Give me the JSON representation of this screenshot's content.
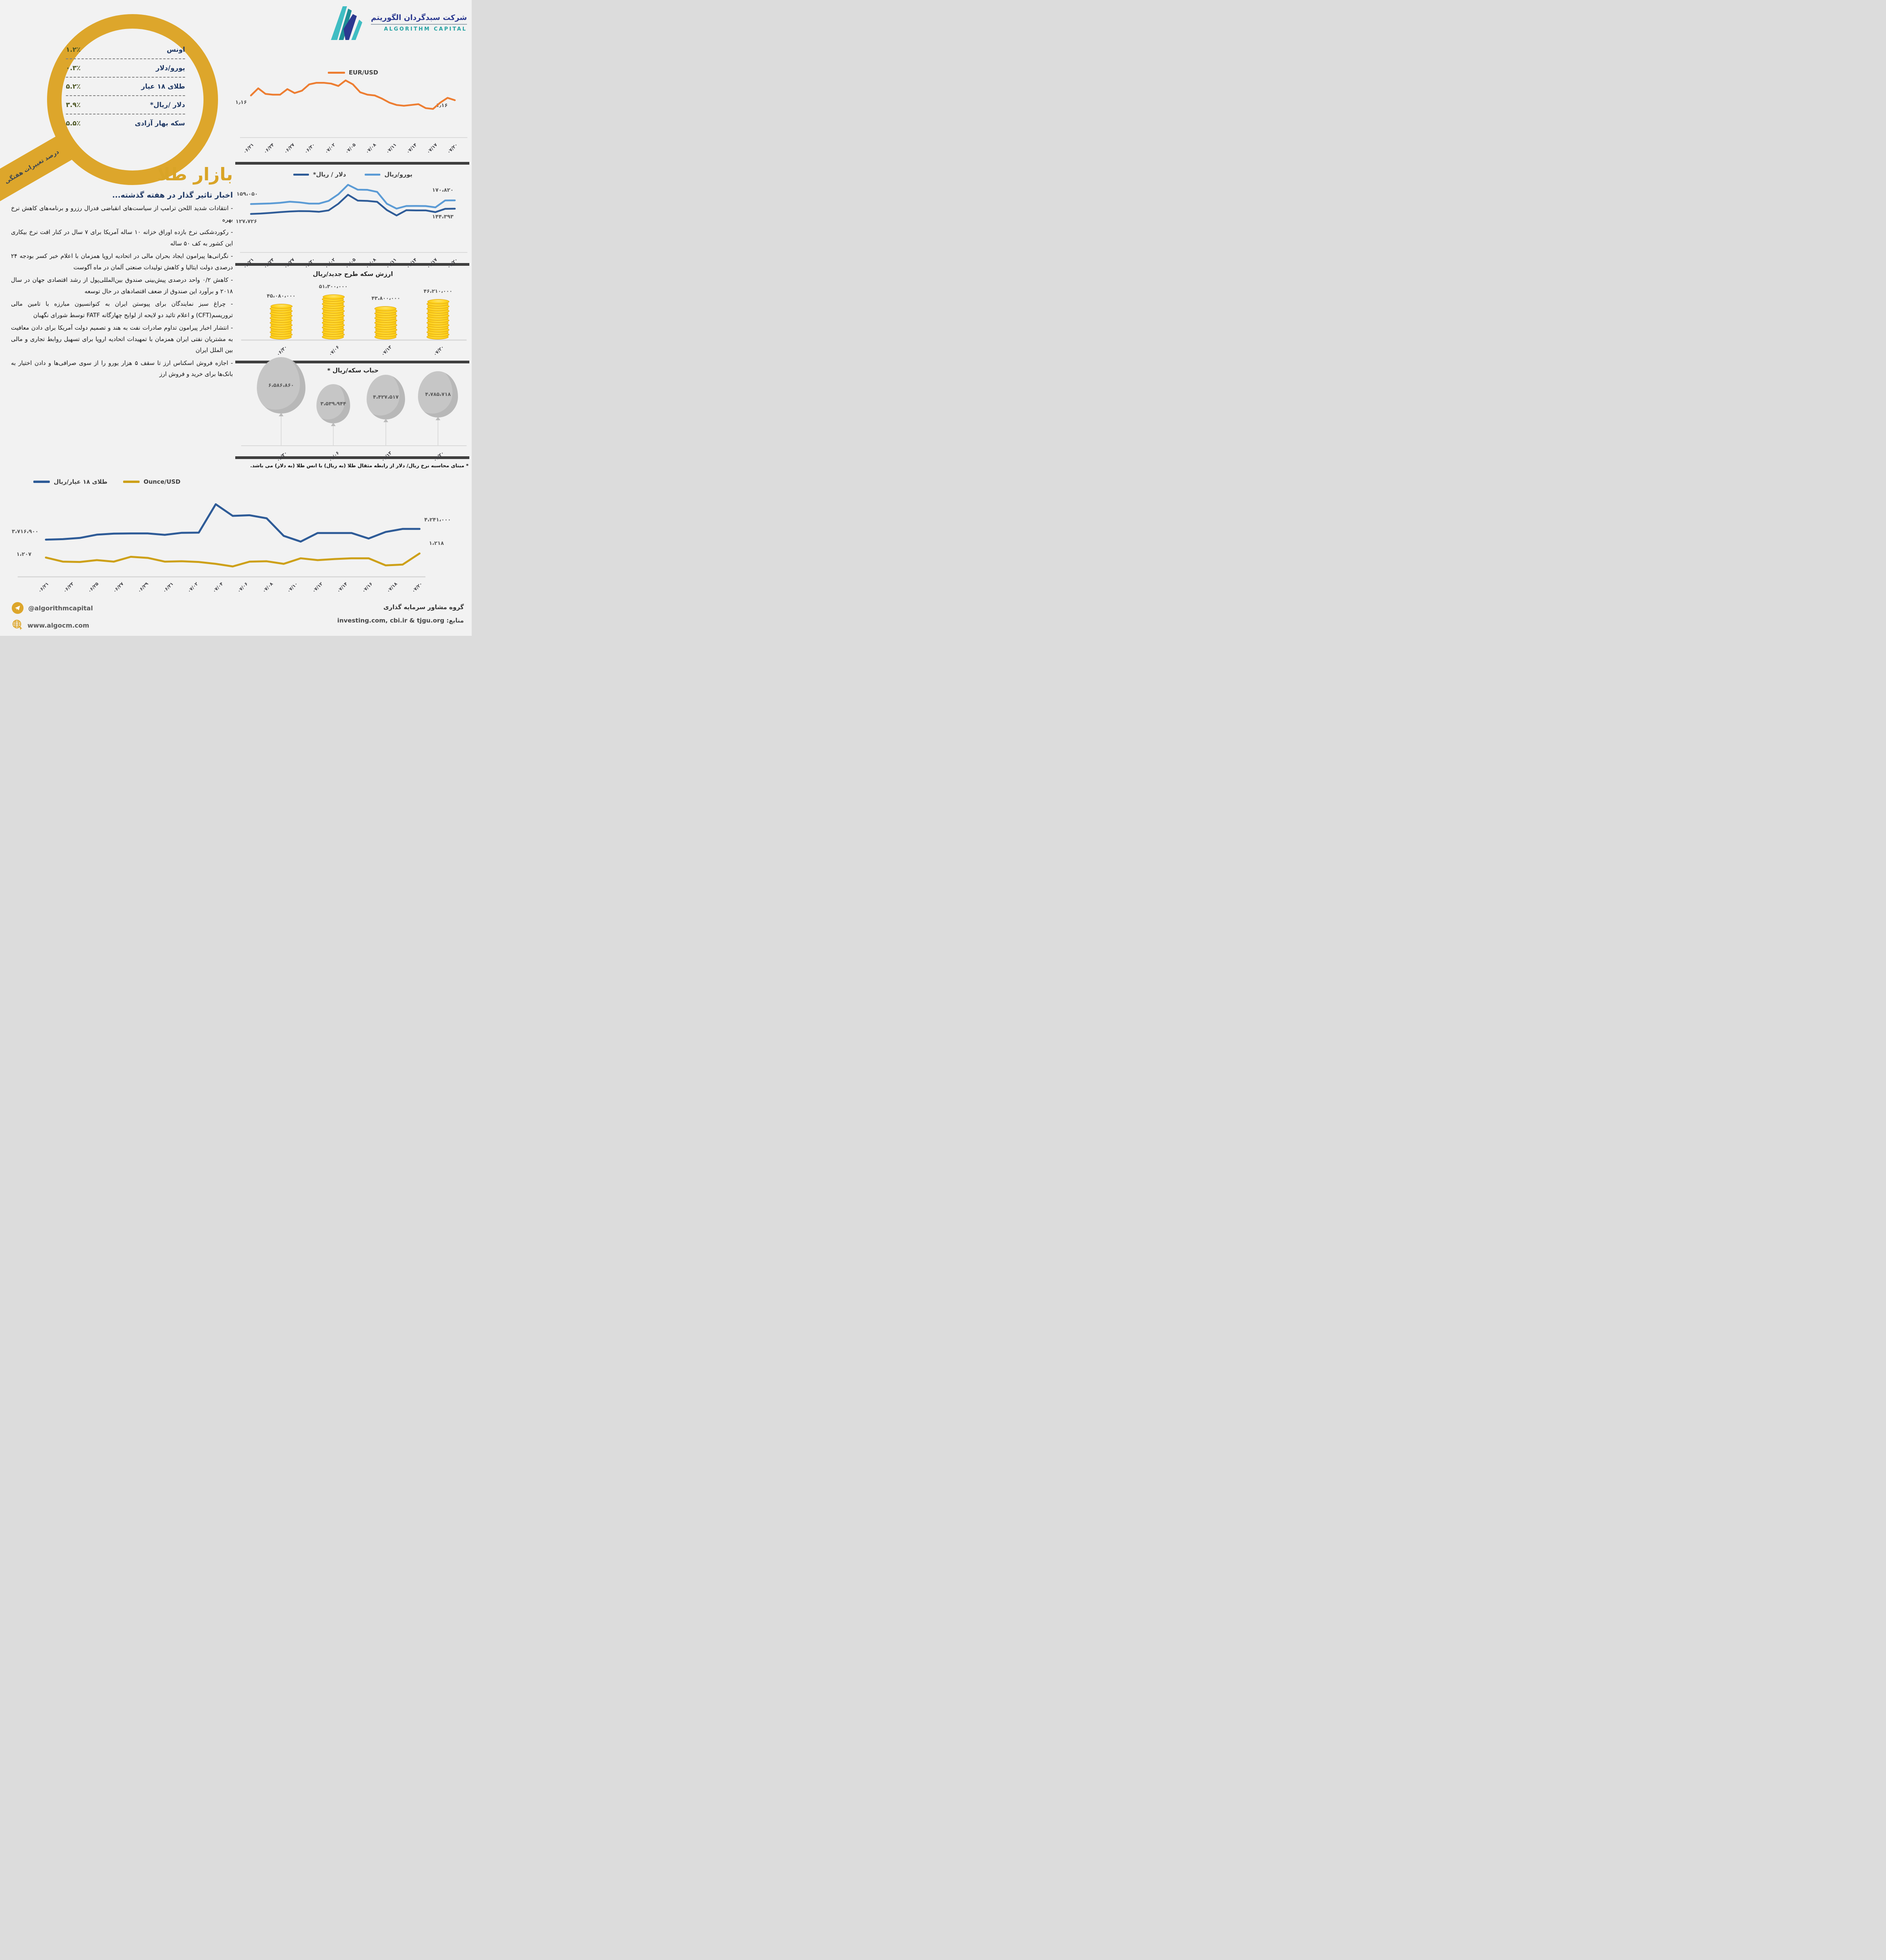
{
  "brand": {
    "name_fa": "شرکت سبدگردان الگوریتم",
    "name_en": "ALGORITHM CAPITAL"
  },
  "magnifier": {
    "handle_label": "درصد تغییرات هفتگی",
    "rows": [
      {
        "label": "اونس",
        "value": "۱.۲٪"
      },
      {
        "label": "یورو/دلار",
        "value": "۰.۳٪"
      },
      {
        "label": "طلای ۱۸ عیار",
        "value": "۵.۲٪"
      },
      {
        "label": "دلار /ریال*",
        "value": "۳.۹٪"
      },
      {
        "label": "سکه بهار آزادی",
        "value": "۵.۵٪"
      }
    ]
  },
  "news": {
    "title": "بازار طلا",
    "subtitle": "اخبار تاثیر گذار در هفته گذشته...",
    "items": [
      "- انتقادات شدید اللحن ترامپ از سیاست‌های انقباضی فدرال رزرو و برنامه‌های کاهش نرخ بهره",
      "- رکوردشکنی نرخ بازده اوراق خزانه ۱۰ ساله آمریکا برای ۷ سال در کنار افت نرخ بیکاری این کشور به کف ۵۰ ساله",
      "- نگرانی‌ها پیرامون ایجاد بحران مالی در اتحادیه اروپا همزمان با اعلام خبر کسر بودجه ۲۴ درصدی دولت ایتالیا و کاهش تولیدات صنعتی آلمان در ماه آگوست",
      "- کاهش ۰/۲ واحد درصدی پیش‌بینی صندوق بین‌المللی‌پول از رشد اقتصادی جهان در سال ۲۰۱۸ و برآورد این صندوق از ضعف اقتصادهای در حال توسعه",
      "- چراغ سبز نمایندگان برای پیوستن ایران به کنوانسیون مبارزه با تامین مالی تروریسم(CFT) و اعلام تائید دو لایحه از لوایح چهارگانه FATF توسط شورای نگهبان",
      "- انتشار اخبار پیرامون تداوم صادرات نفت به هند و تصمیم دولت آمریکا برای دادن معافیت به مشتریان نفتی ایران همزمان با تمهیدات اتحادیه اروپا برای تسهیل روابط تجاری و مالی بین الملل ایران",
      "- اجازه فروش اسکناس ارز تا سقف ۵ هزار یورو را از سوی صرافی‌ها و دادن اختیار به بانک‌ها برای خرید و فروش ارز"
    ]
  },
  "footnote": "* مبنای محاسبه نرخ ریال/ دلار از رابطه مثقال طلا (به ریال) با انس طلا (به دلار) می باشد.",
  "footer": {
    "telegram": "@algorithmcapital",
    "website": "www.algocm.com",
    "group": "گروه مشاور سرمایه گذاری",
    "sources_label": "منابع:",
    "sources": "investing.com, cbi.ir & tjgu.org"
  },
  "colors": {
    "background": "#F2F2F2",
    "accent_gold": "#DDA62B",
    "orange": "#ED7D31",
    "blue_dark": "#2E5B97",
    "blue_light": "#5B9BD5",
    "gold_line": "#CDA018",
    "navy": "#1F3864",
    "olive_green": "#4A5420",
    "gray_label": "#595959",
    "separator_bar": "#3F3F3F",
    "balloon_gray": "#C6C6C6",
    "coin_yellow": "#FFD21C",
    "logo_teal": "#21A0A0",
    "logo_navy": "#2B3990"
  },
  "chart_data": [
    {
      "id": "eur_usd",
      "type": "line",
      "x_labels": [
        "۰۶/۲۱",
        "۰۶/۲۴",
        "۰۶/۲۷",
        "۰۶/۳۰",
        "۰۷/۰۲",
        "۰۷/۰۵",
        "۰۷/۰۸",
        "۰۷/۱۱",
        "۰۷/۱۴",
        "۰۷/۱۷",
        "۰۷/۲۰"
      ],
      "ylim": [
        1.138,
        1.186
      ],
      "legend_position": "top-center",
      "series": [
        {
          "name": "EUR/USD",
          "color": "#ED7D31",
          "start_label": "۱٫۱۶",
          "end_label": "۱٫۱۶",
          "values": [
            1.162,
            1.171,
            1.164,
            1.163,
            1.163,
            1.17,
            1.165,
            1.168,
            1.176,
            1.178,
            1.178,
            1.177,
            1.174,
            1.181,
            1.176,
            1.166,
            1.163,
            1.162,
            1.158,
            1.153,
            1.15,
            1.149,
            1.15,
            1.151,
            1.146,
            1.145,
            1.153,
            1.159,
            1.156
          ]
        }
      ]
    },
    {
      "id": "usd_rial_eur_rial",
      "type": "line",
      "x_labels": [
        "۰۶/۲۱",
        "۰۶/۲۴",
        "۰۶/۲۷",
        "۰۶/۳۰",
        "۰۷/۰۲",
        "۰۷/۰۵",
        "۰۷/۰۸",
        "۰۷/۱۱",
        "۰۷/۱۴",
        "۰۷/۱۷",
        "۰۷/۲۰"
      ],
      "ylim": [
        120000,
        228000
      ],
      "legend_position": "top-center",
      "series": [
        {
          "name": "دلار / ریال*",
          "color": "#2E5B97",
          "start_label": "۱۲۷،۷۲۶",
          "end_label": "۱۴۴،۳۹۳",
          "values": [
            127726,
            129000,
            131000,
            133500,
            135500,
            136800,
            136500,
            134500,
            139000,
            160000,
            188500,
            170000,
            169000,
            166000,
            140000,
            122800,
            139500,
            139000,
            139000,
            133500,
            143800,
            144393
          ]
        },
        {
          "name": "یورو/ریال",
          "color": "#5B9BD5",
          "start_label": "۱۵۹،۰۵۰",
          "end_label": "۱۷۰،۸۲۰",
          "values": [
            159050,
            160000,
            161000,
            163000,
            166500,
            164500,
            160500,
            160500,
            169000,
            190000,
            220000,
            204500,
            204000,
            197500,
            160000,
            144600,
            152900,
            153000,
            152800,
            148500,
            170400,
            170820
          ]
        }
      ]
    },
    {
      "id": "coin_value",
      "type": "bar",
      "title": "ارزش سکه طرح جدید/ریال",
      "categories": [
        "۰۶/۳۰",
        "۰۷/۰۶",
        "۰۷/۱۳",
        "۰۷/۲۰"
      ],
      "values": [
        45080000,
        51300000,
        43800000,
        46210000
      ],
      "value_labels": [
        "۴۵،۰۸۰،۰۰۰",
        "۵۱،۳۰۰،۰۰۰",
        "۴۳،۸۰۰،۰۰۰",
        "۴۶،۲۱۰،۰۰۰"
      ],
      "unit": "ریال"
    },
    {
      "id": "coin_bubble",
      "type": "bubble",
      "title": "حباب سکه/ریال *",
      "categories": [
        "۰۶/۳۰",
        "۰۷/۰۶",
        "۰۷/۱۳",
        "۰۷/۲۰"
      ],
      "values": [
        6586860,
        3539944,
        4427517,
        4785718
      ],
      "value_labels": [
        "۶،۵۸۶،۸۶۰",
        "۳،۵۳۹،۹۴۴",
        "۴،۴۲۷،۵۱۷",
        "۴،۷۸۵،۷۱۸"
      ],
      "unit": "ریال"
    },
    {
      "id": "gold18_ounce",
      "type": "line",
      "x_labels": [
        "۰۶/۲۱",
        "۰۶/۲۳",
        "۰۶/۲۵",
        "۰۶/۲۷",
        "۰۶/۲۹",
        "۰۶/۳۱",
        "۰۷/۰۲",
        "۰۷/۰۴",
        "۰۷/۰۶",
        "۰۷/۰۸",
        "۰۷/۱۰",
        "۰۷/۱۲",
        "۰۷/۱۴",
        "۰۷/۱۶",
        "۰۷/۱۸",
        "۰۷/۲۰"
      ],
      "legend_position": "top-left",
      "series": [
        {
          "name": "طلای ۱۸ عیار/ریال",
          "color": "#2E5B97",
          "start_label": "۳،۷۱۶،۹۰۰",
          "end_label": "۴،۲۴۱،۰۰۰",
          "ylim": [
            2500000,
            6050000
          ],
          "values": [
            3716900,
            3740000,
            3800000,
            3960000,
            4010000,
            4020000,
            4020000,
            3950000,
            4050000,
            4060000,
            5450000,
            4880000,
            4910000,
            4760000,
            3900000,
            3620000,
            4040000,
            4040000,
            4040000,
            3770000,
            4090000,
            4241000,
            4241000
          ]
        },
        {
          "name": "Ounce/USD",
          "color": "#CDA018",
          "start_label": "۱،۲۰۷",
          "end_label": "۱،۲۱۸",
          "ylim": [
            1183,
            1220
          ],
          "values": [
            1207,
            1196,
            1195,
            1200,
            1196,
            1209,
            1206,
            1196,
            1197,
            1195,
            1190,
            1183,
            1196,
            1197,
            1190,
            1205,
            1200,
            1203,
            1205,
            1205,
            1186,
            1188,
            1218
          ]
        }
      ]
    }
  ]
}
